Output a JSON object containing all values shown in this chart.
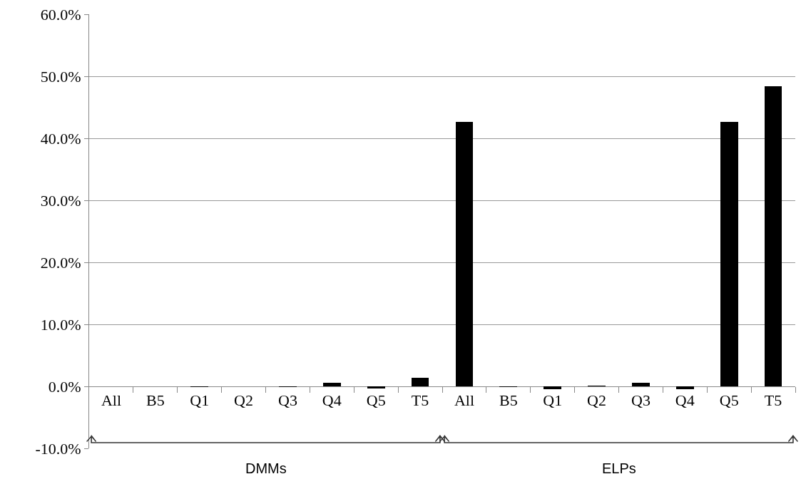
{
  "chart_data": {
    "type": "bar",
    "categories": [
      "All",
      "B5",
      "Q1",
      "Q2",
      "Q3",
      "Q4",
      "Q5",
      "T5",
      "All",
      "B5",
      "Q1",
      "Q2",
      "Q3",
      "Q4",
      "Q5",
      "T5"
    ],
    "values": [
      0,
      0,
      -0.1,
      0,
      -0.1,
      0.6,
      -0.3,
      1.4,
      42.7,
      -0.1,
      -0.5,
      0.1,
      0.6,
      -0.5,
      42.7,
      48.4
    ],
    "color": "#000000",
    "ylim": [
      -10,
      60
    ],
    "yticks": [
      {
        "value": -10,
        "label": "-10.0%"
      },
      {
        "value": 0,
        "label": "0.0%"
      },
      {
        "value": 10,
        "label": "10.0%"
      },
      {
        "value": 20,
        "label": "20.0%"
      },
      {
        "value": 30,
        "label": "30.0%"
      },
      {
        "value": 40,
        "label": "40.0%"
      },
      {
        "value": 50,
        "label": "50.0%"
      },
      {
        "value": 60,
        "label": "60.0%"
      }
    ],
    "grid": "y",
    "annotations": [
      "DMMs",
      "ELPs"
    ]
  }
}
